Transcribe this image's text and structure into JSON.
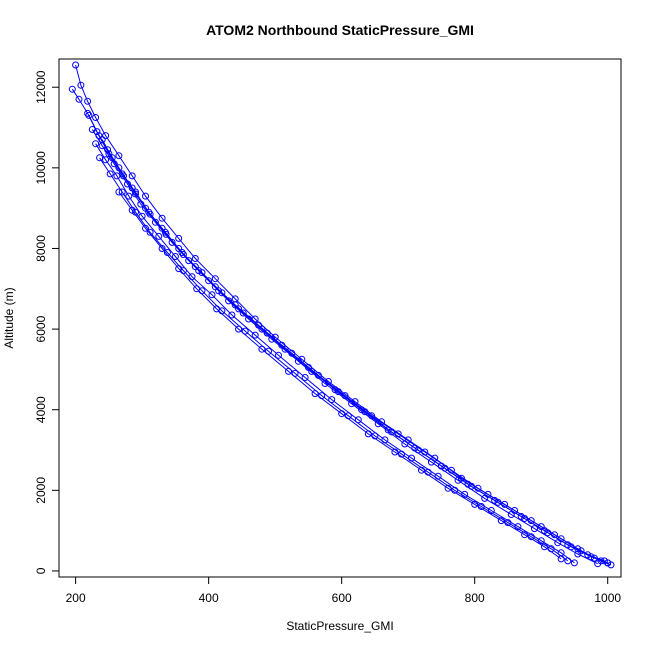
{
  "chart_data": {
    "type": "scatter",
    "title": "ATOM2 Northbound StaticPressure_GMI",
    "xlabel": "StaticPressure_GMI",
    "ylabel": "Altitude (m)",
    "xlim": [
      175,
      1020
    ],
    "ylim": [
      -150,
      12700
    ],
    "x_ticks": [
      200,
      400,
      600,
      800,
      1000
    ],
    "y_ticks": [
      0,
      2000,
      4000,
      6000,
      8000,
      10000,
      12000
    ],
    "grid": false,
    "legend": "none",
    "marker": "open-circle",
    "connected": true,
    "color": "#0000ff",
    "series": [
      {
        "x": [
          1005,
          990,
          960,
          930,
          900,
          860,
          820,
          780,
          740,
          700,
          660,
          620,
          580,
          540,
          500,
          470,
          440,
          410,
          380,
          355,
          330,
          305,
          285,
          265,
          245,
          230,
          218,
          208,
          200
        ],
        "y": [
          150,
          250,
          500,
          800,
          1100,
          1500,
          1900,
          2300,
          2800,
          3250,
          3700,
          4200,
          4700,
          5250,
          5800,
          6250,
          6750,
          7250,
          7750,
          8250,
          8750,
          9300,
          9800,
          10300,
          10800,
          11250,
          11650,
          12050,
          12550
        ]
      },
      {
        "x": [
          1000,
          975,
          945,
          910,
          875,
          835,
          795,
          755,
          715,
          675,
          635,
          595,
          555,
          515,
          480,
          445,
          415,
          385,
          360,
          335,
          310,
          290,
          270,
          250,
          235,
          220
        ],
        "y": [
          200,
          350,
          600,
          950,
          1300,
          1700,
          2100,
          2550,
          3000,
          3450,
          3950,
          4450,
          4950,
          5500,
          6000,
          6500,
          6950,
          7450,
          7900,
          8400,
          8900,
          9400,
          9850,
          10350,
          10800,
          11300
        ]
      },
      {
        "x": [
          995,
          970,
          940,
          905,
          870,
          830,
          790,
          750,
          710,
          670,
          630,
          590,
          550,
          510,
          475,
          440,
          410,
          380,
          355,
          330,
          305,
          285,
          265,
          248,
          232,
          218,
          205,
          195
        ],
        "y": [
          250,
          400,
          650,
          1000,
          1350,
          1750,
          2150,
          2600,
          3050,
          3500,
          4000,
          4500,
          5050,
          5600,
          6100,
          6600,
          7050,
          7550,
          8000,
          8500,
          9000,
          9500,
          10000,
          10450,
          10900,
          11350,
          11700,
          11950
        ]
      },
      {
        "x": [
          985,
          955,
          925,
          890,
          855,
          815,
          775,
          735,
          695,
          655,
          615,
          575,
          535,
          495,
          460,
          430,
          400,
          370,
          345,
          320,
          298,
          278,
          258,
          240,
          225
        ],
        "y": [
          180,
          420,
          700,
          1050,
          1400,
          1800,
          2250,
          2700,
          3150,
          3650,
          4150,
          4650,
          5200,
          5750,
          6250,
          6700,
          7200,
          7700,
          8150,
          8650,
          9100,
          9600,
          10100,
          10550,
          10950
        ]
      },
      {
        "x": [
          950,
          930,
          900,
          865,
          825,
          785,
          745,
          705,
          665,
          625,
          585,
          545,
          505,
          470,
          435,
          405,
          375,
          350,
          325,
          300,
          280,
          262,
          245,
          230
        ],
        "y": [
          200,
          450,
          750,
          1100,
          1500,
          1900,
          2350,
          2800,
          3250,
          3750,
          4250,
          4800,
          5350,
          5850,
          6350,
          6850,
          7300,
          7800,
          8300,
          8800,
          9300,
          9800,
          10200,
          10600
        ]
      },
      {
        "x": [
          940,
          915,
          885,
          850,
          810,
          770,
          730,
          690,
          650,
          610,
          570,
          530,
          490,
          455,
          420,
          390,
          362,
          338,
          312,
          290,
          270,
          252,
          236
        ],
        "y": [
          250,
          550,
          850,
          1200,
          1600,
          2000,
          2450,
          2900,
          3350,
          3850,
          4350,
          4900,
          5450,
          5950,
          6450,
          6950,
          7450,
          7900,
          8400,
          8900,
          9400,
          9850,
          10250
        ]
      },
      {
        "x": [
          930,
          905,
          875,
          840,
          800,
          760,
          720,
          680,
          640,
          600,
          560,
          520,
          480,
          445,
          412,
          382,
          355,
          330,
          305,
          285,
          265
        ],
        "y": [
          300,
          600,
          900,
          1250,
          1650,
          2050,
          2500,
          2950,
          3400,
          3900,
          4400,
          4950,
          5500,
          6000,
          6500,
          7000,
          7500,
          8000,
          8500,
          8950,
          9400
        ]
      },
      {
        "x": [
          1000,
          980,
          955,
          920,
          885,
          845,
          805,
          765,
          725,
          685,
          645,
          605,
          565,
          525,
          488,
          452,
          420,
          390,
          362,
          336,
          312,
          290,
          272,
          255,
          240
        ],
        "y": [
          200,
          320,
          550,
          900,
          1250,
          1650,
          2050,
          2500,
          2950,
          3400,
          3850,
          4350,
          4850,
          5400,
          5900,
          6400,
          6900,
          7400,
          7850,
          8350,
          8850,
          9350,
          9800,
          10250,
          10700
        ]
      }
    ]
  }
}
